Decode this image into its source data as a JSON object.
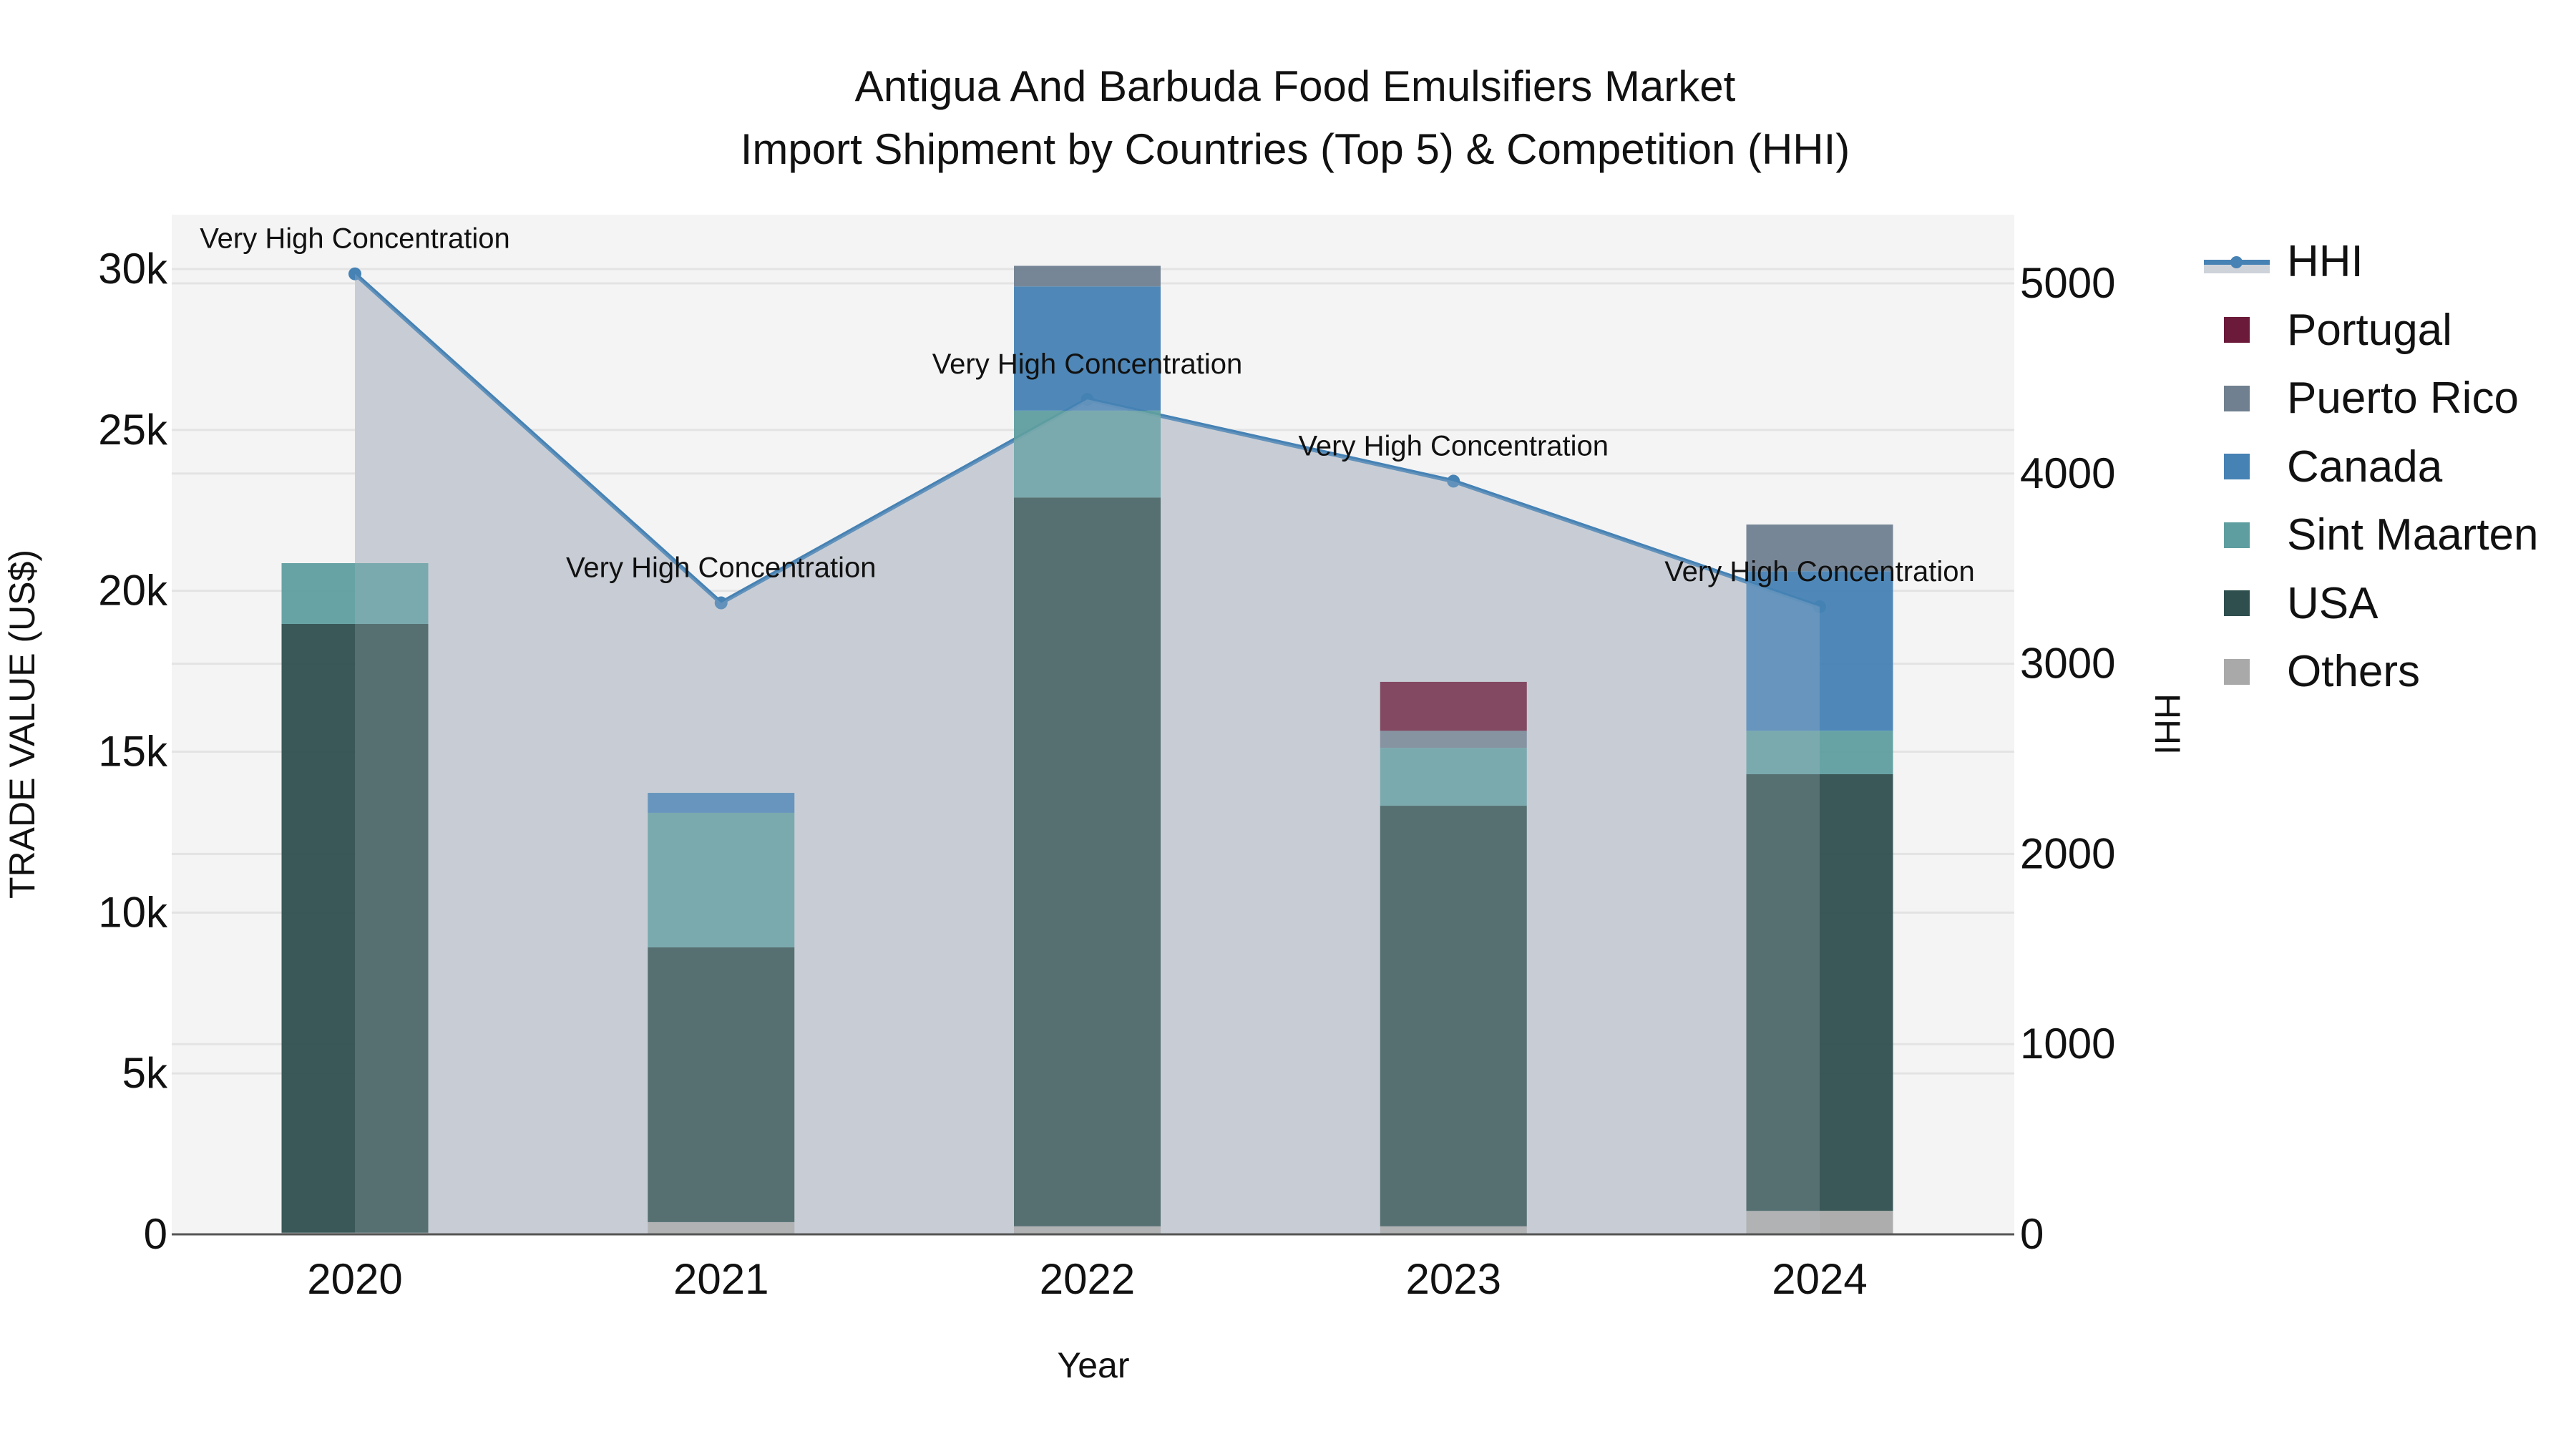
{
  "header": {
    "title_line1": "Antigua And Barbuda Food Emulsifiers Market",
    "title_line2": "Import Shipment by Countries (Top 5) & Competition (HHI)"
  },
  "axes": {
    "left_title": "TRADE VALUE (US$)",
    "right_title": "HHI",
    "x_title": "Year",
    "left_ticks": [
      "0",
      "5k",
      "10k",
      "15k",
      "20k",
      "25k",
      "30k"
    ],
    "right_ticks": [
      "0",
      "1000",
      "2000",
      "3000",
      "4000",
      "5000"
    ]
  },
  "legend": {
    "items": [
      {
        "label": "HHI",
        "type": "line",
        "color": "#4682b4"
      },
      {
        "label": "Portugal",
        "type": "bar",
        "color": "#6b1a3a"
      },
      {
        "label": "Puerto Rico",
        "type": "bar",
        "color": "#708090"
      },
      {
        "label": "Canada",
        "type": "bar",
        "color": "#4682b4"
      },
      {
        "label": "Sint Maarten",
        "type": "bar",
        "color": "#5f9ea0"
      },
      {
        "label": "USA",
        "type": "bar",
        "color": "#2f4f4f"
      },
      {
        "label": "Others",
        "type": "bar",
        "color": "#a9a9a9"
      }
    ]
  },
  "colors": {
    "plot_bg": "#f4f4f4",
    "grid": "#e3e3e3",
    "hhi_fill": "rgba(160,170,185,0.45)",
    "hhi_line": "#4682b4",
    "axis_line": "#555555"
  },
  "chart_data": {
    "type": "bar",
    "title": "Antigua And Barbuda Food Emulsifiers Market Import Shipment by Countries (Top 5) & Competition (HHI)",
    "xlabel": "Year",
    "ylabel": "TRADE VALUE (US$)",
    "y2label": "HHI",
    "ylim": [
      0,
      31500
    ],
    "y2lim": [
      0,
      5360
    ],
    "barmode": "stack",
    "grid": true,
    "legend_position": "right",
    "categories": [
      "2020",
      "2021",
      "2022",
      "2023",
      "2024"
    ],
    "series": [
      {
        "name": "Others",
        "color": "#a9a9a9",
        "values": [
          50,
          380,
          250,
          250,
          730
        ]
      },
      {
        "name": "USA",
        "color": "#2f4f4f",
        "values": [
          18920,
          8540,
          22650,
          13070,
          13570
        ]
      },
      {
        "name": "Sint Maarten",
        "color": "#5f9ea0",
        "values": [
          1890,
          4180,
          2700,
          1800,
          1350
        ]
      },
      {
        "name": "Canada",
        "color": "#4682b4",
        "values": [
          0,
          620,
          3860,
          0,
          4960
        ]
      },
      {
        "name": "Puerto Rico",
        "color": "#708090",
        "values": [
          0,
          0,
          640,
          530,
          1450
        ]
      },
      {
        "name": "Portugal",
        "color": "#6b1a3a",
        "values": [
          0,
          0,
          0,
          1520,
          0
        ]
      }
    ],
    "line_series": {
      "name": "HHI",
      "axis": "right",
      "color": "#4682b4",
      "values": [
        5050,
        3320,
        4390,
        3960,
        3300
      ],
      "annotations": [
        "Very High Concentration",
        "Very High Concentration",
        "Very High Concentration",
        "Very High Concentration",
        "Very High Concentration"
      ]
    }
  }
}
